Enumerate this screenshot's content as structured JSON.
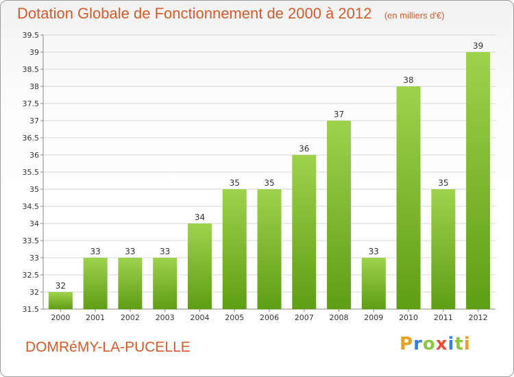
{
  "header": {
    "title": "Dotation Globale de Fonctionnement de 2000 à 2012",
    "unit": "(en milliers d'€)"
  },
  "footer": {
    "commune": "DOMRéMY-LA-PUCELLE",
    "brand_letters": [
      "P",
      "r",
      "o",
      "x",
      "i",
      "t",
      "i"
    ],
    "brand_colors": [
      "#e8a020",
      "#3a7fd0",
      "#8cc63f",
      "#e8503a",
      "#3a7fd0",
      "#8cc63f",
      "#e8a020"
    ]
  },
  "colors": {
    "title": "#d35a2a",
    "bar_light": "#9fd24c",
    "bar_dark": "#5e9e14",
    "grid": "#d6d6d6"
  },
  "chart_data": {
    "type": "bar",
    "title": "Dotation Globale de Fonctionnement de 2000 à 2012",
    "xlabel": "",
    "ylabel": "",
    "categories": [
      "2000",
      "2001",
      "2002",
      "2003",
      "2004",
      "2005",
      "2006",
      "2007",
      "2008",
      "2009",
      "2010",
      "2011",
      "2012"
    ],
    "values": [
      32,
      33,
      33,
      33,
      34,
      35,
      35,
      36,
      37,
      33,
      38,
      35,
      39
    ],
    "value_labels": [
      "32",
      "33",
      "33",
      "33",
      "34",
      "35",
      "35",
      "36",
      "37",
      "33",
      "38",
      "35",
      "39"
    ],
    "ylim": [
      31.5,
      39.5
    ],
    "yticks": [
      31.5,
      32,
      32.5,
      33,
      33.5,
      34,
      34.5,
      35,
      35.5,
      36,
      36.5,
      37,
      37.5,
      38,
      38.5,
      39,
      39.5
    ],
    "ytick_labels": [
      "31.5",
      "32",
      "32.5",
      "33",
      "33.5",
      "34",
      "34.5",
      "35",
      "35.5",
      "36",
      "36.5",
      "37",
      "37.5",
      "38",
      "38.5",
      "39",
      "39.5"
    ],
    "grid": true,
    "legend": "none"
  }
}
